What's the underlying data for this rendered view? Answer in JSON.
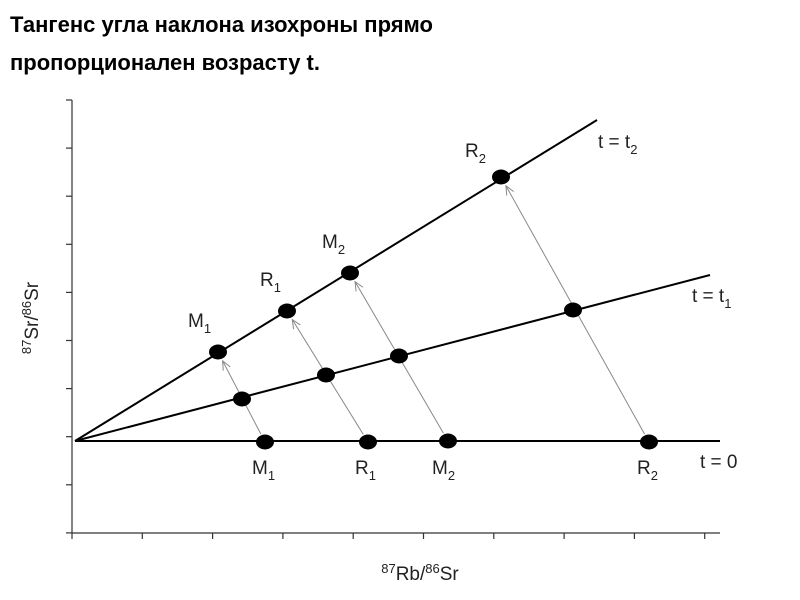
{
  "title": {
    "lines": [
      "Тангенс угла наклона изохроны прямо",
      "пропорционален возрасту t."
    ]
  },
  "y_axis_label": {
    "iso1": "87",
    "part1": "Sr/",
    "iso2": "86",
    "part2": "Sr"
  },
  "x_axis_label": {
    "iso1": "87",
    "part1": "Rb/",
    "iso2": "86",
    "part2": "Sr"
  },
  "line_labels": [
    {
      "text": "t = t",
      "sub": "2"
    },
    {
      "text": "t = t",
      "sub": "1"
    },
    {
      "text": "t = 0"
    }
  ],
  "upper_point_labels": [
    {
      "text": "M",
      "sub": "1"
    },
    {
      "text": "R",
      "sub": "1"
    },
    {
      "text": "M",
      "sub": "2"
    },
    {
      "text": "R",
      "sub": "2"
    }
  ],
  "lower_point_labels": [
    {
      "text": "M",
      "sub": "1"
    },
    {
      "text": "R",
      "sub": "1"
    },
    {
      "text": "M",
      "sub": "2"
    },
    {
      "text": "R",
      "sub": "2"
    }
  ]
}
